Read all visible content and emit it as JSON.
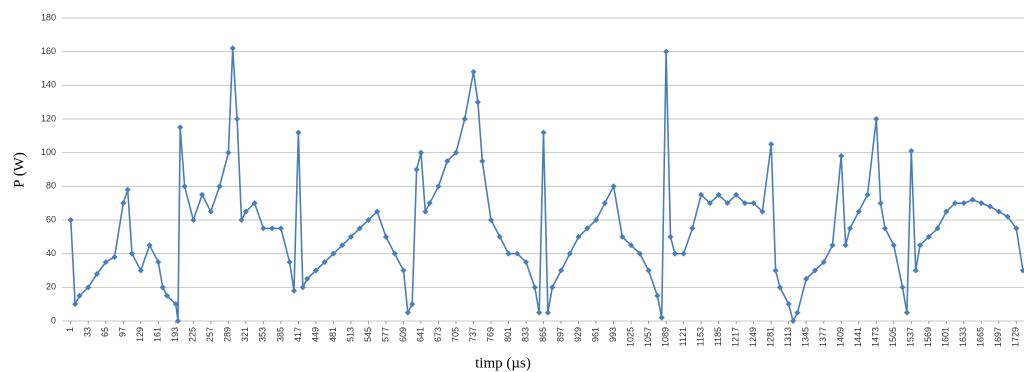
{
  "chart_data": {
    "type": "line",
    "y_label": "P (W)",
    "x_label": "timp (µs)",
    "xlim": [
      -15,
      1743
    ],
    "ylim": [
      0,
      180
    ],
    "yticks": [
      0,
      20,
      40,
      60,
      80,
      100,
      120,
      140,
      160,
      180
    ],
    "xticks": [
      1,
      33,
      65,
      97,
      129,
      161,
      193,
      225,
      257,
      289,
      321,
      353,
      385,
      417,
      449,
      481,
      513,
      545,
      577,
      609,
      641,
      673,
      705,
      737,
      769,
      801,
      833,
      865,
      897,
      929,
      961,
      993,
      1025,
      1057,
      1089,
      1121,
      1153,
      1185,
      1217,
      1249,
      1281,
      1313,
      1345,
      1377,
      1409,
      1441,
      1473,
      1505,
      1537,
      1569,
      1601,
      1633,
      1665,
      1697,
      1729
    ],
    "grid": true,
    "series": [
      {
        "color": "#4a7ebb",
        "x": [
          1,
          9,
          17,
          33,
          49,
          65,
          81,
          97,
          105,
          113,
          129,
          145,
          161,
          169,
          177,
          193,
          197,
          201,
          209,
          225,
          241,
          257,
          273,
          289,
          297,
          305,
          313,
          321,
          337,
          353,
          369,
          385,
          401,
          409,
          417,
          425,
          433,
          449,
          465,
          481,
          497,
          513,
          529,
          545,
          561,
          577,
          593,
          609,
          617,
          625,
          633,
          641,
          649,
          657,
          673,
          689,
          705,
          721,
          737,
          745,
          753,
          769,
          785,
          801,
          817,
          833,
          849,
          857,
          865,
          873,
          881,
          897,
          913,
          929,
          945,
          961,
          977,
          993,
          1009,
          1025,
          1041,
          1057,
          1073,
          1081,
          1089,
          1097,
          1105,
          1121,
          1137,
          1153,
          1169,
          1185,
          1201,
          1217,
          1233,
          1249,
          1265,
          1281,
          1289,
          1297,
          1313,
          1321,
          1329,
          1345,
          1361,
          1377,
          1393,
          1409,
          1417,
          1425,
          1441,
          1457,
          1473,
          1481,
          1489,
          1505,
          1521,
          1529,
          1537,
          1545,
          1553,
          1569,
          1585,
          1601,
          1617,
          1633,
          1649,
          1665,
          1681,
          1697,
          1713,
          1729,
          1741
        ],
        "values": [
          60,
          10,
          15,
          20,
          28,
          35,
          38,
          70,
          78,
          40,
          30,
          45,
          35,
          20,
          15,
          10,
          0,
          115,
          80,
          60,
          75,
          65,
          80,
          100,
          162,
          120,
          60,
          65,
          70,
          55,
          55,
          55,
          35,
          18,
          112,
          20,
          25,
          30,
          35,
          40,
          45,
          50,
          55,
          60,
          65,
          50,
          40,
          30,
          5,
          10,
          90,
          100,
          65,
          70,
          80,
          95,
          100,
          120,
          148,
          130,
          95,
          60,
          50,
          40,
          40,
          35,
          20,
          5,
          112,
          5,
          20,
          30,
          40,
          50,
          55,
          60,
          70,
          80,
          50,
          45,
          40,
          30,
          15,
          2,
          160,
          50,
          40,
          40,
          55,
          75,
          70,
          75,
          70,
          75,
          70,
          70,
          65,
          105,
          30,
          20,
          10,
          0,
          5,
          25,
          30,
          35,
          45,
          98,
          45,
          55,
          65,
          75,
          120,
          70,
          55,
          45,
          20,
          5,
          101,
          30,
          45,
          50,
          55,
          65,
          70,
          70,
          72,
          70,
          68,
          65,
          62,
          55,
          30
        ]
      }
    ]
  }
}
